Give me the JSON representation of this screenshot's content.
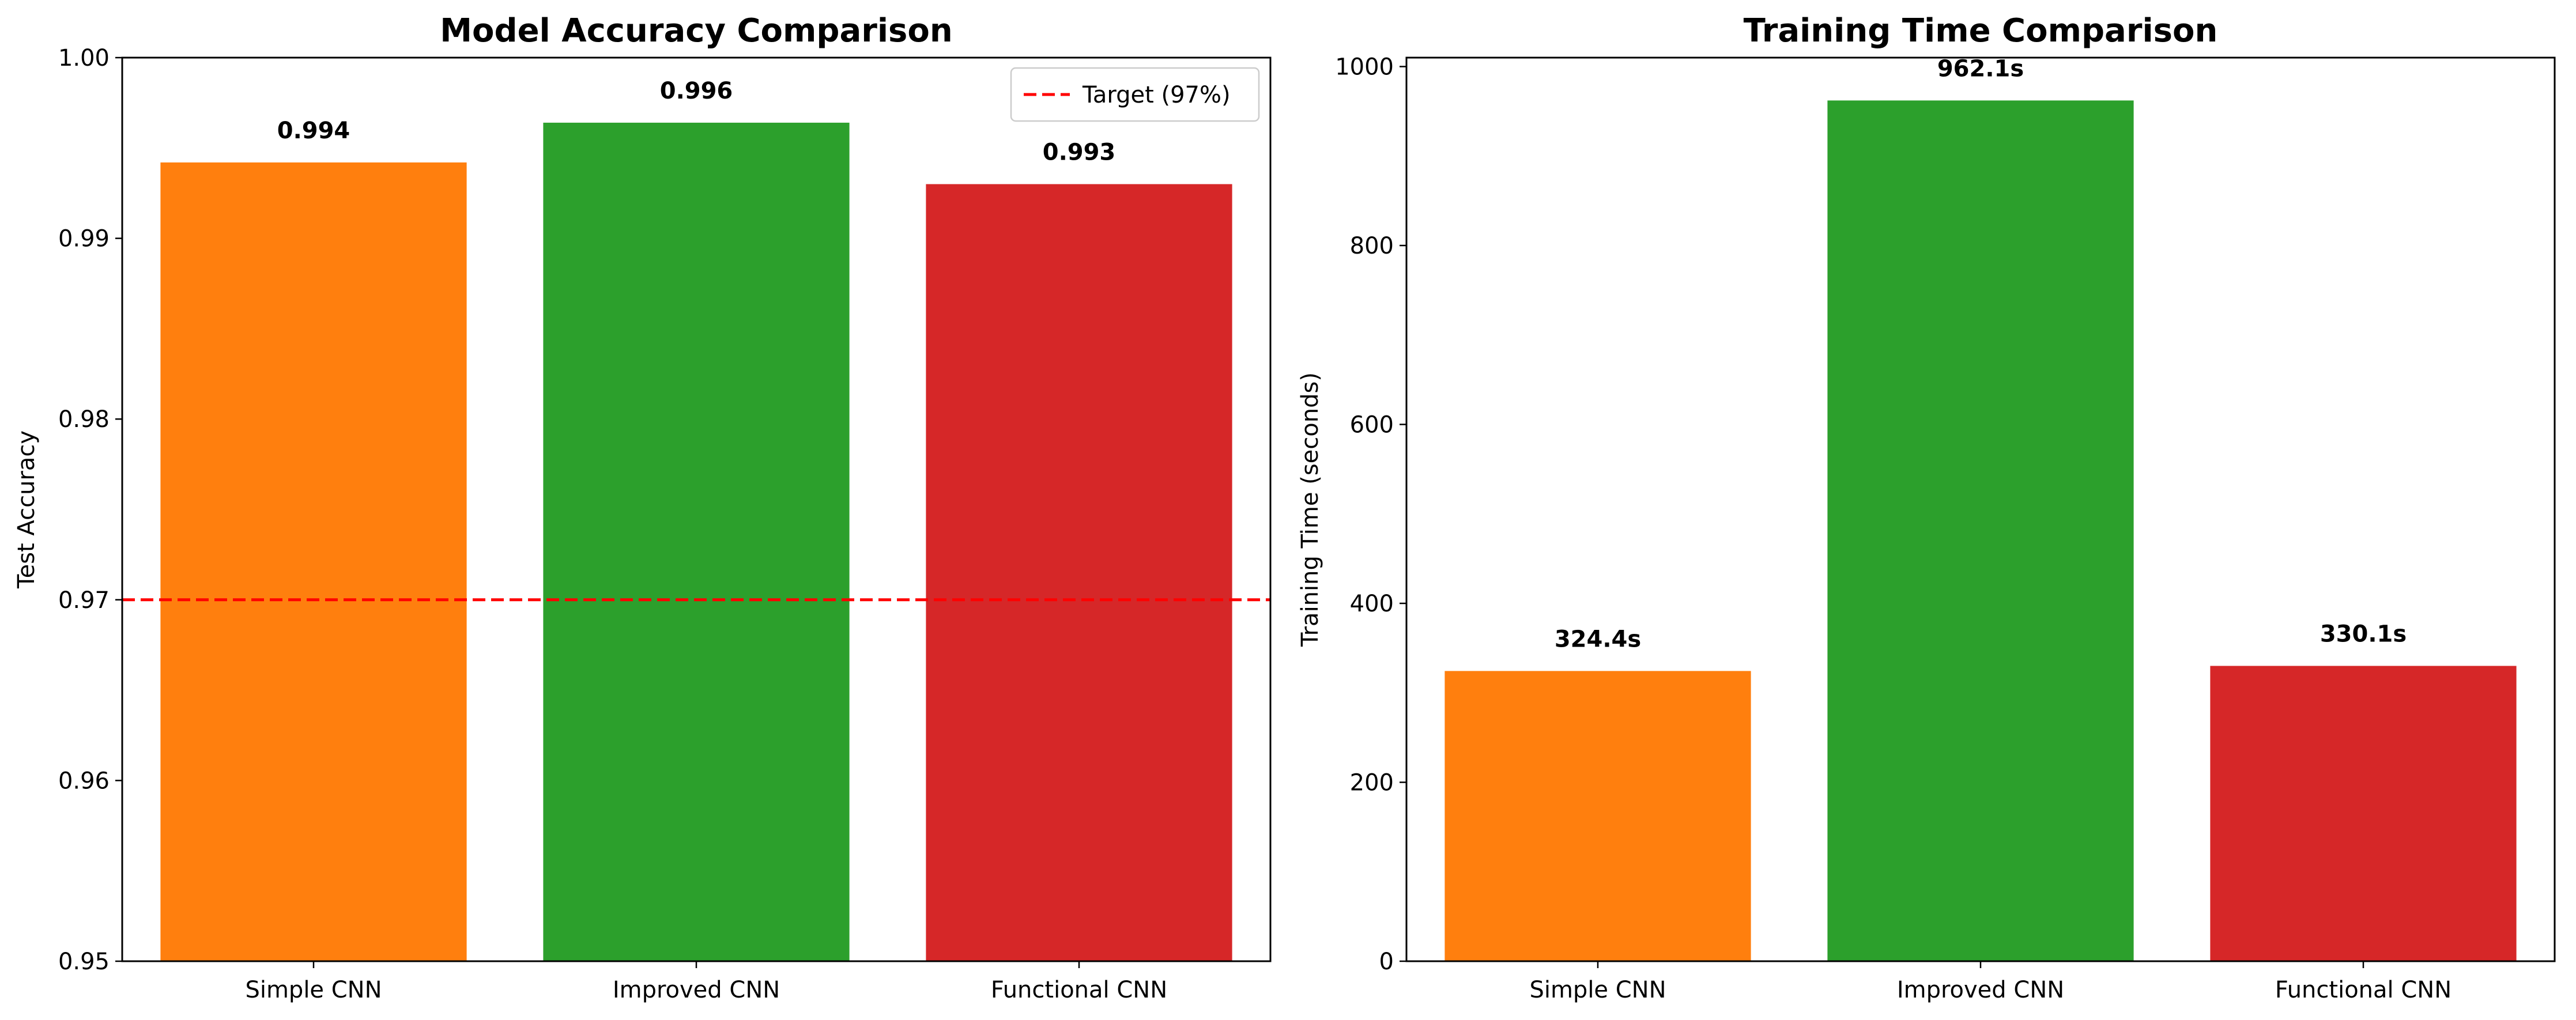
{
  "chart_data": [
    {
      "type": "bar",
      "title": "Model Accuracy Comparison",
      "xlabel": "",
      "ylabel": "Test Accuracy",
      "categories": [
        "Simple CNN",
        "Improved CNN",
        "Functional CNN"
      ],
      "values": [
        0.9942,
        0.9964,
        0.993
      ],
      "value_labels": [
        "0.994",
        "0.996",
        "0.993"
      ],
      "bar_colors": [
        "#ff7f0e",
        "#2ca02c",
        "#d62728"
      ],
      "ylim": [
        0.95,
        1.0
      ],
      "yticks": [
        0.95,
        0.96,
        0.97,
        0.98,
        0.99,
        1.0
      ],
      "ytick_labels": [
        "0.95",
        "0.96",
        "0.97",
        "0.98",
        "0.99",
        "1.00"
      ],
      "reference_line": {
        "value": 0.97,
        "color": "#ff0000",
        "style": "dashed",
        "label": "Target (97%)"
      },
      "legend": {
        "placement": "top-right",
        "entries": [
          "Target (97%)"
        ]
      },
      "grid": false
    },
    {
      "type": "bar",
      "title": "Training Time Comparison",
      "xlabel": "",
      "ylabel": "Training Time (seconds)",
      "categories": [
        "Simple CNN",
        "Improved CNN",
        "Functional CNN"
      ],
      "values": [
        324.4,
        962.1,
        330.1
      ],
      "value_labels": [
        "324.4s",
        "962.1s",
        "330.1s"
      ],
      "bar_colors": [
        "#ff7f0e",
        "#2ca02c",
        "#d62728"
      ],
      "ylim": [
        0,
        1010
      ],
      "yticks": [
        0,
        200,
        400,
        600,
        800,
        1000
      ],
      "ytick_labels": [
        "0",
        "200",
        "400",
        "600",
        "800",
        "1000"
      ],
      "grid": false
    }
  ]
}
